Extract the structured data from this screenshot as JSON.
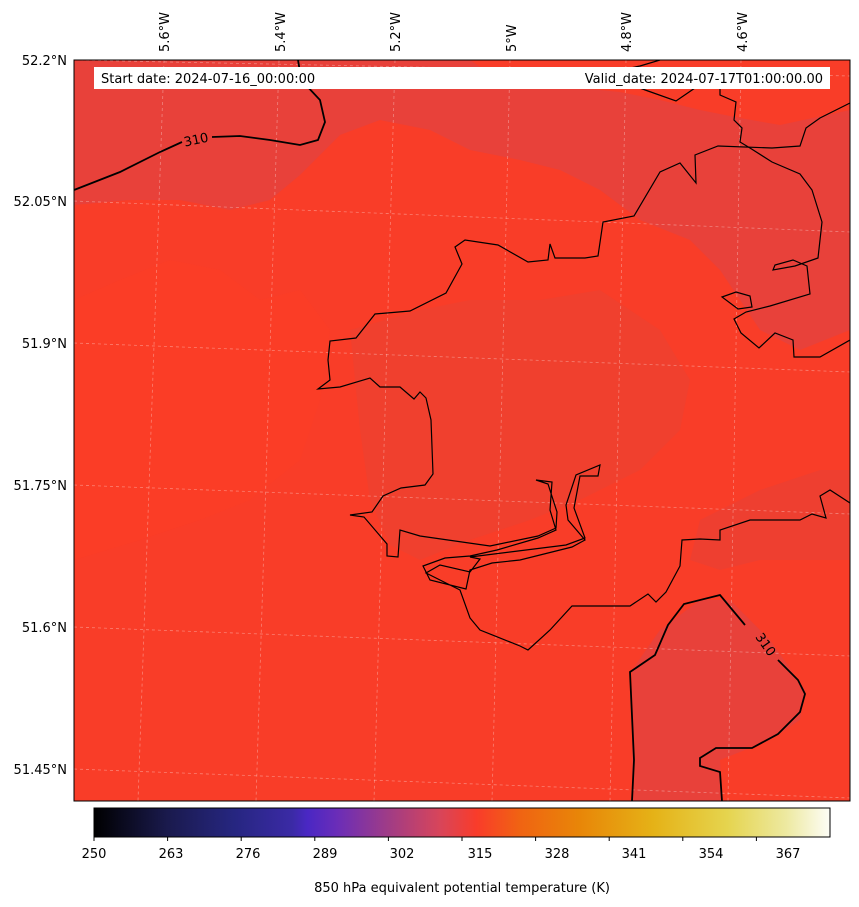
{
  "header": {
    "start_date": "Start date: 2024-07-16_00:00:00",
    "valid_date": "Valid_date: 2024-07-17T01:00:00.00"
  },
  "map": {
    "lon_labels": [
      "5.6°W",
      "5.4°W",
      "5.2°W",
      "5°W",
      "4.8°W",
      "4.6°W"
    ],
    "lat_labels": [
      "52.2°N",
      "52.05°N",
      "51.9°N",
      "51.75°N",
      "51.6°N",
      "51.45°N"
    ],
    "contour_labels": [
      "310",
      "310"
    ],
    "colors": {
      "field_main": "#f93d28",
      "field_cool": "#e8413a",
      "coast": "#000000",
      "grid": "#ffffff"
    }
  },
  "colorbar": {
    "ticks": [
      "250",
      "263",
      "276",
      "289",
      "302",
      "315",
      "328",
      "341",
      "354",
      "367"
    ],
    "label": "850 hPa equivalent potential temperature (K)",
    "colormap": "CMRmap"
  }
}
